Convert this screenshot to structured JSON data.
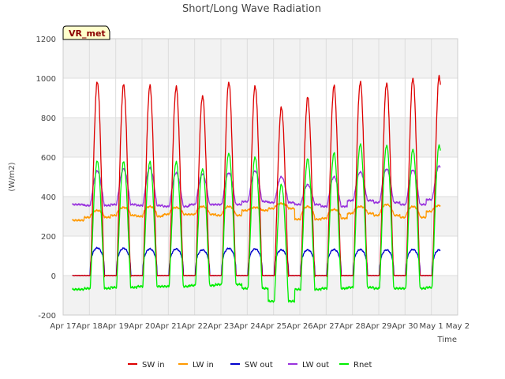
{
  "chart_data": {
    "type": "line",
    "title": "Short/Long Wave Radiation",
    "xlabel": "Time",
    "ylabel": "(W/m2)",
    "badge": "VR_met",
    "ylim": [
      -200,
      1200
    ],
    "xlim": [
      0,
      15
    ],
    "yticks": [
      -200,
      0,
      200,
      400,
      600,
      800,
      1000,
      1200
    ],
    "xtick_values": [
      0,
      1,
      2,
      3,
      4,
      5,
      6,
      7,
      8,
      9,
      10,
      11,
      12,
      13,
      14,
      15
    ],
    "xtick_labels": [
      "Apr 17",
      "Apr 18",
      "Apr 19",
      "Apr 20",
      "Apr 21",
      "Apr 22",
      "Apr 23",
      "Apr 24",
      "Apr 25",
      "Apr 26",
      "Apr 27",
      "Apr 28",
      "Apr 29",
      "Apr 30",
      "May 1",
      "May 2"
    ],
    "grid": true,
    "legend_position": "bottom-center",
    "series": [
      {
        "name": "SW in",
        "color": "#dd0000",
        "day_centers": [
          1.3,
          2.3,
          3.3,
          4.3,
          5.3,
          6.3,
          7.3,
          8.3,
          9.3,
          10.3,
          11.3,
          12.3,
          13.3,
          14.3
        ],
        "day_peaks": [
          980,
          965,
          960,
          955,
          910,
          980,
          960,
          850,
          900,
          960,
          980,
          975,
          1000,
          1010
        ],
        "night_value": 0
      },
      {
        "name": "LW in",
        "color": "#ff9900",
        "day_centers": [
          1.3,
          2.3,
          3.3,
          4.3,
          5.3,
          6.3,
          7.3,
          8.3,
          9.3,
          10.3,
          11.3,
          12.3,
          13.3,
          14.3
        ],
        "day_peaks": [
          330,
          345,
          350,
          345,
          350,
          350,
          345,
          365,
          350,
          335,
          350,
          360,
          350,
          355
        ],
        "night_values": [
          280,
          295,
          305,
          300,
          310,
          310,
          305,
          330,
          340,
          285,
          290,
          315,
          305,
          295,
          325
        ]
      },
      {
        "name": "SW out",
        "color": "#0000cc",
        "day_centers": [
          1.3,
          2.3,
          3.3,
          4.3,
          5.3,
          6.3,
          7.3,
          8.3,
          9.3,
          10.3,
          11.3,
          12.3,
          13.3,
          14.3
        ],
        "day_peaks": [
          140,
          138,
          135,
          135,
          130,
          138,
          135,
          130,
          130,
          132,
          132,
          130,
          132,
          130
        ],
        "night_value": 0
      },
      {
        "name": "LW out",
        "color": "#9933dd",
        "day_centers": [
          1.3,
          2.3,
          3.3,
          4.3,
          5.3,
          6.3,
          7.3,
          8.3,
          9.3,
          10.3,
          11.3,
          12.3,
          13.3,
          14.3
        ],
        "day_peaks": [
          530,
          540,
          545,
          520,
          515,
          520,
          530,
          500,
          460,
          500,
          525,
          540,
          535,
          555
        ],
        "night_values": [
          360,
          355,
          360,
          355,
          350,
          360,
          360,
          375,
          370,
          360,
          350,
          380,
          370,
          360,
          385
        ]
      },
      {
        "name": "Rnet",
        "color": "#00ee00",
        "day_centers": [
          1.3,
          2.3,
          3.3,
          4.3,
          5.3,
          6.3,
          7.3,
          8.3,
          9.3,
          10.3,
          11.3,
          12.3,
          13.3,
          14.3
        ],
        "day_peaks": [
          580,
          575,
          575,
          575,
          540,
          620,
          600,
          460,
          590,
          620,
          665,
          660,
          640,
          660
        ],
        "night_values": [
          -70,
          -65,
          -60,
          -55,
          -55,
          -50,
          -45,
          -65,
          -130,
          -70,
          -65,
          -60,
          -65,
          -65,
          -60
        ]
      }
    ]
  }
}
